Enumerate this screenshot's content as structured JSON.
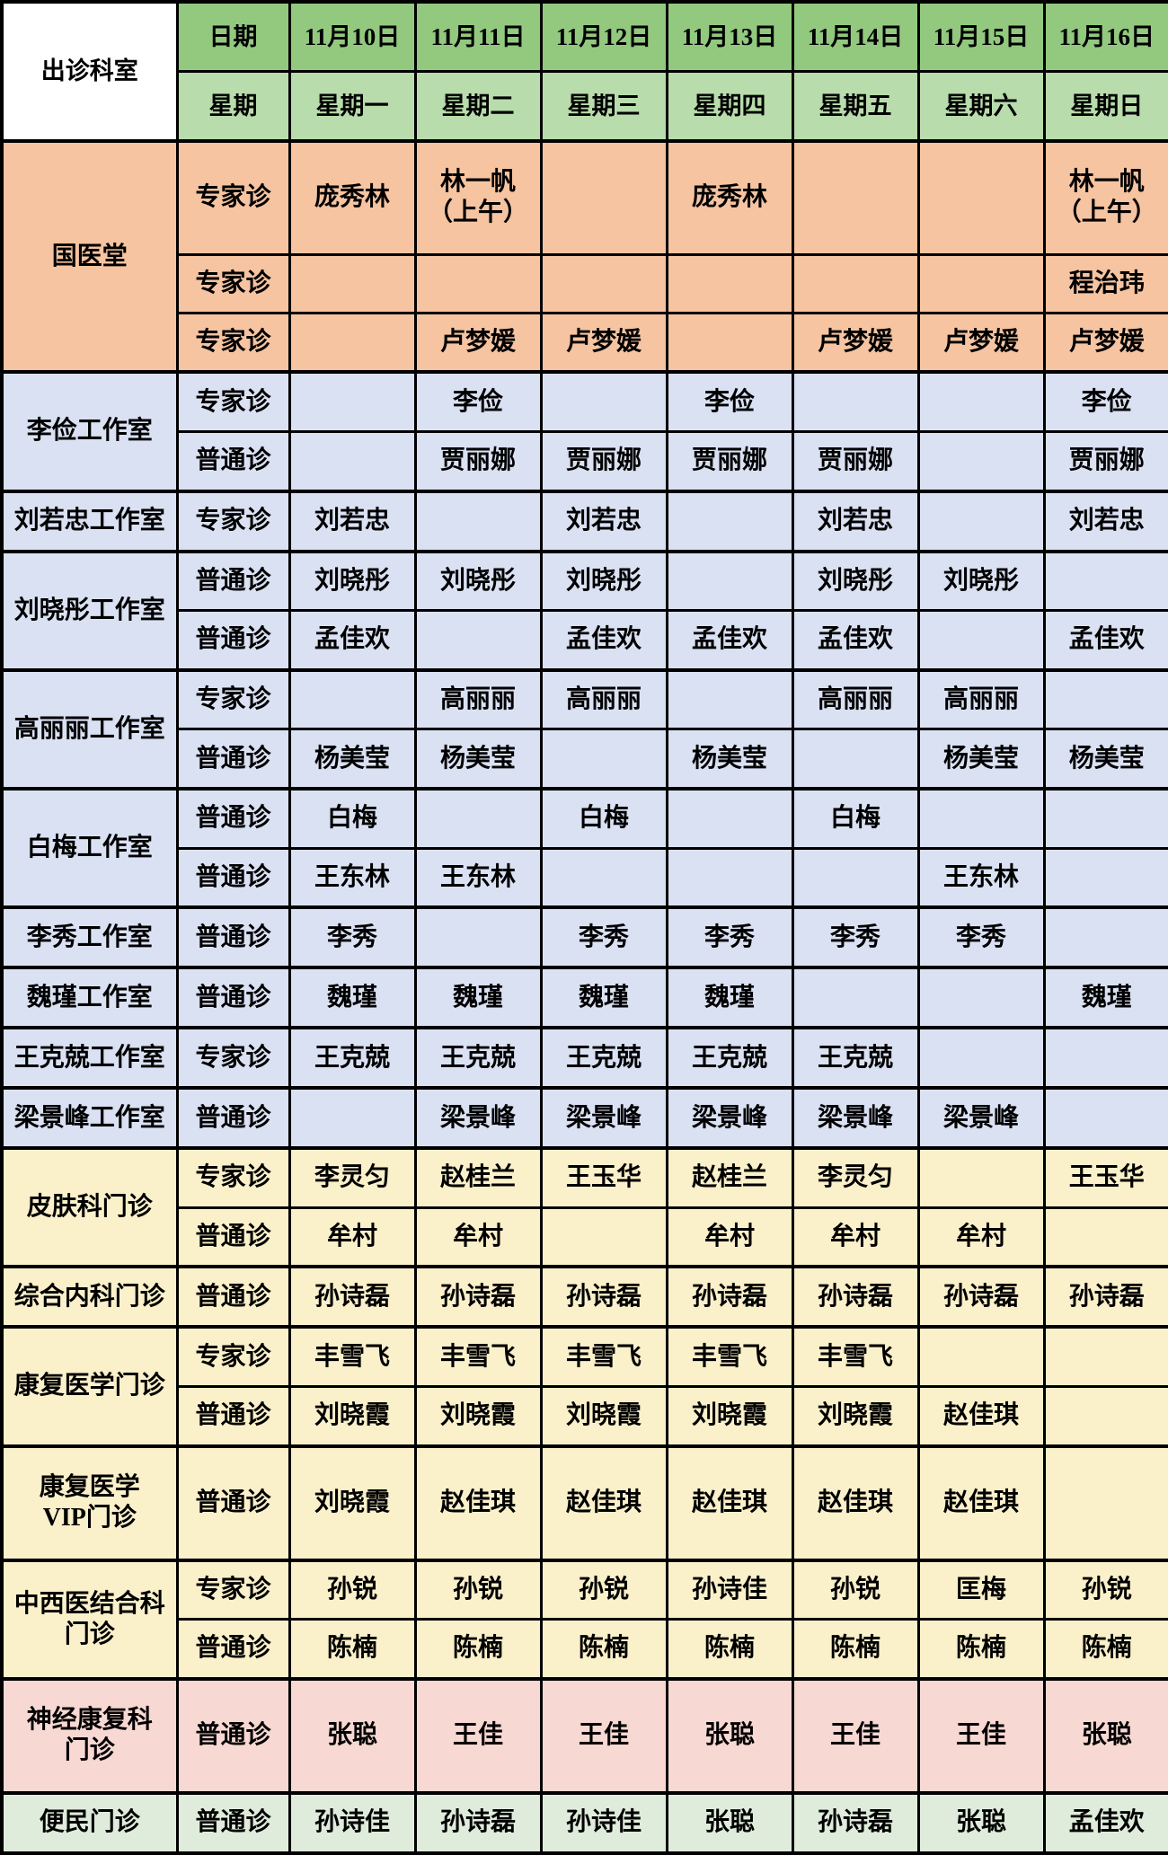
{
  "header": {
    "dept_label": "出诊科室",
    "date_label": "日期",
    "week_label": "星期",
    "dates": [
      "11月10日",
      "11月11日",
      "11月12日",
      "11月13日",
      "11月14日",
      "11月15日",
      "11月16日"
    ],
    "weekdays": [
      "星期一",
      "星期二",
      "星期三",
      "星期四",
      "星期五",
      "星期六",
      "星期日"
    ]
  },
  "colors": {
    "corner_bg": "#ffffff",
    "header_date_bg": "#92c97f",
    "header_week_bg": "#b8dcab",
    "salmon": "#f6c4a1",
    "lavender": "#dae1f3",
    "yellow": "#faf0ca",
    "pink": "#f8d8d3",
    "green": "#dfecdc",
    "border": "#000000",
    "text": "#000000"
  },
  "sections": [
    {
      "dept": "国医堂",
      "color": "salmon",
      "rows": [
        {
          "type": "专家诊",
          "cells": [
            "庞秀林",
            "林一帆\n（上午）",
            "",
            "庞秀林",
            "",
            "",
            "林一帆\n（上午）"
          ]
        },
        {
          "type": "专家诊",
          "cells": [
            "",
            "",
            "",
            "",
            "",
            "",
            "程治玮"
          ]
        },
        {
          "type": "专家诊",
          "cells": [
            "",
            "卢梦媛",
            "卢梦媛",
            "",
            "卢梦媛",
            "卢梦媛",
            "卢梦媛"
          ]
        }
      ]
    },
    {
      "dept": "李俭工作室",
      "color": "lavender",
      "rows": [
        {
          "type": "专家诊",
          "cells": [
            "",
            "李俭",
            "",
            "李俭",
            "",
            "",
            "李俭"
          ]
        },
        {
          "type": "普通诊",
          "cells": [
            "",
            "贾丽娜",
            "贾丽娜",
            "贾丽娜",
            "贾丽娜",
            "",
            "贾丽娜"
          ]
        }
      ]
    },
    {
      "dept": "刘若忠工作室",
      "color": "lavender",
      "rows": [
        {
          "type": "专家诊",
          "cells": [
            "刘若忠",
            "",
            "刘若忠",
            "",
            "刘若忠",
            "",
            "刘若忠"
          ]
        }
      ]
    },
    {
      "dept": "刘晓彤工作室",
      "color": "lavender",
      "rows": [
        {
          "type": "普通诊",
          "cells": [
            "刘晓彤",
            "刘晓彤",
            "刘晓彤",
            "",
            "刘晓彤",
            "刘晓彤",
            ""
          ]
        },
        {
          "type": "普通诊",
          "cells": [
            "孟佳欢",
            "",
            "孟佳欢",
            "孟佳欢",
            "孟佳欢",
            "",
            "孟佳欢"
          ]
        }
      ]
    },
    {
      "dept": "高丽丽工作室",
      "color": "lavender",
      "rows": [
        {
          "type": "专家诊",
          "cells": [
            "",
            "高丽丽",
            "高丽丽",
            "",
            "高丽丽",
            "高丽丽",
            ""
          ]
        },
        {
          "type": "普通诊",
          "cells": [
            "杨美莹",
            "杨美莹",
            "",
            "杨美莹",
            "",
            "杨美莹",
            "杨美莹"
          ]
        }
      ]
    },
    {
      "dept": "白梅工作室",
      "color": "lavender",
      "rows": [
        {
          "type": "普通诊",
          "cells": [
            "白梅",
            "",
            "白梅",
            "",
            "白梅",
            "",
            ""
          ]
        },
        {
          "type": "普通诊",
          "cells": [
            "王东林",
            "王东林",
            "",
            "",
            "",
            "王东林",
            ""
          ]
        }
      ]
    },
    {
      "dept": "李秀工作室",
      "color": "lavender",
      "rows": [
        {
          "type": "普通诊",
          "cells": [
            "李秀",
            "",
            "李秀",
            "李秀",
            "李秀",
            "李秀",
            ""
          ]
        }
      ]
    },
    {
      "dept": "魏瑾工作室",
      "color": "lavender",
      "rows": [
        {
          "type": "普通诊",
          "cells": [
            "魏瑾",
            "魏瑾",
            "魏瑾",
            "魏瑾",
            "",
            "",
            "魏瑾"
          ]
        }
      ]
    },
    {
      "dept": "王克兢工作室",
      "color": "lavender",
      "rows": [
        {
          "type": "专家诊",
          "cells": [
            "王克兢",
            "王克兢",
            "王克兢",
            "王克兢",
            "王克兢",
            "",
            ""
          ]
        }
      ]
    },
    {
      "dept": "梁景峰工作室",
      "color": "lavender",
      "rows": [
        {
          "type": "普通诊",
          "cells": [
            "",
            "梁景峰",
            "梁景峰",
            "梁景峰",
            "梁景峰",
            "梁景峰",
            ""
          ]
        }
      ]
    },
    {
      "dept": "皮肤科门诊",
      "color": "yellow",
      "rows": [
        {
          "type": "专家诊",
          "cells": [
            "李灵匀",
            "赵桂兰",
            "王玉华",
            "赵桂兰",
            "李灵匀",
            "",
            "王玉华"
          ]
        },
        {
          "type": "普通诊",
          "cells": [
            "牟村",
            "牟村",
            "",
            "牟村",
            "牟村",
            "牟村",
            ""
          ]
        }
      ]
    },
    {
      "dept": "综合内科门诊",
      "color": "yellow",
      "rows": [
        {
          "type": "普通诊",
          "cells": [
            "孙诗磊",
            "孙诗磊",
            "孙诗磊",
            "孙诗磊",
            "孙诗磊",
            "孙诗磊",
            "孙诗磊"
          ]
        }
      ]
    },
    {
      "dept": "康复医学门诊",
      "color": "yellow",
      "rows": [
        {
          "type": "专家诊",
          "cells": [
            "丰雪飞",
            "丰雪飞",
            "丰雪飞",
            "丰雪飞",
            "丰雪飞",
            "",
            ""
          ]
        },
        {
          "type": "普通诊",
          "cells": [
            "刘晓霞",
            "刘晓霞",
            "刘晓霞",
            "刘晓霞",
            "刘晓霞",
            "赵佳琪",
            ""
          ]
        }
      ]
    },
    {
      "dept": "康复医学\nVIP门诊",
      "color": "yellow",
      "rows": [
        {
          "type": "普通诊",
          "cells": [
            "刘晓霞",
            "赵佳琪",
            "赵佳琪",
            "赵佳琪",
            "赵佳琪",
            "赵佳琪",
            ""
          ]
        }
      ]
    },
    {
      "dept": "中西医结合科\n门诊",
      "color": "yellow",
      "rows": [
        {
          "type": "专家诊",
          "cells": [
            "孙锐",
            "孙锐",
            "孙锐",
            "孙诗佳",
            "孙锐",
            "匡梅",
            "孙锐"
          ]
        },
        {
          "type": "普通诊",
          "cells": [
            "陈楠",
            "陈楠",
            "陈楠",
            "陈楠",
            "陈楠",
            "陈楠",
            "陈楠"
          ]
        }
      ]
    },
    {
      "dept": "神经康复科\n门诊",
      "color": "pink",
      "rows": [
        {
          "type": "普通诊",
          "cells": [
            "张聪",
            "王佳",
            "王佳",
            "张聪",
            "王佳",
            "王佳",
            "张聪"
          ]
        }
      ]
    },
    {
      "dept": "便民门诊",
      "color": "green",
      "rows": [
        {
          "type": "普通诊",
          "cells": [
            "孙诗佳",
            "孙诗磊",
            "孙诗佳",
            "张聪",
            "孙诗磊",
            "张聪",
            "孟佳欢"
          ]
        }
      ]
    }
  ]
}
